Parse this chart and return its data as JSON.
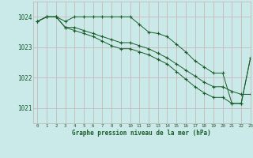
{
  "title": "Graphe pression niveau de la mer (hPa)",
  "background_color": "#caeaea",
  "grid_color": "#c8b8b8",
  "line_color": "#1a5c28",
  "text_color": "#1a5c28",
  "xlim": [
    -0.5,
    23
  ],
  "ylim": [
    1020.5,
    1024.5
  ],
  "yticks": [
    1021,
    1022,
    1023,
    1024
  ],
  "xticks": [
    0,
    1,
    2,
    3,
    4,
    5,
    6,
    7,
    8,
    9,
    10,
    11,
    12,
    13,
    14,
    15,
    16,
    17,
    18,
    19,
    20,
    21,
    22,
    23
  ],
  "line1_x": [
    0,
    1,
    2,
    3,
    4,
    5,
    6,
    7,
    8,
    9,
    10,
    11,
    12,
    13,
    14,
    15,
    16,
    17,
    18,
    19,
    20,
    21,
    22,
    23
  ],
  "line1_y": [
    1023.85,
    1024.0,
    1024.0,
    1023.85,
    1024.0,
    1024.0,
    1024.0,
    1024.0,
    1024.0,
    1024.0,
    1024.0,
    1023.75,
    1023.5,
    1023.45,
    1023.35,
    1023.1,
    1022.85,
    1022.55,
    1022.35,
    1022.15,
    1022.15,
    1021.15,
    1021.15,
    1022.65
  ],
  "line2_x": [
    0,
    1,
    2,
    3,
    4,
    5,
    6,
    7,
    8,
    9,
    10,
    11,
    12,
    13,
    14,
    15,
    16,
    17,
    18,
    19,
    20,
    21,
    22,
    23
  ],
  "line2_y": [
    1023.85,
    1024.0,
    1024.0,
    1023.65,
    1023.65,
    1023.55,
    1023.45,
    1023.35,
    1023.25,
    1023.15,
    1023.15,
    1023.05,
    1022.95,
    1022.8,
    1022.65,
    1022.45,
    1022.25,
    1022.05,
    1021.85,
    1021.7,
    1021.7,
    1021.55,
    1021.45,
    1021.45
  ],
  "line3_x": [
    0,
    1,
    2,
    3,
    4,
    5,
    6,
    7,
    8,
    9,
    10,
    11,
    12,
    13,
    14,
    15,
    16,
    17,
    18,
    19,
    20,
    21,
    22,
    23
  ],
  "line3_y": [
    1023.85,
    1024.0,
    1024.0,
    1023.65,
    1023.55,
    1023.45,
    1023.35,
    1023.2,
    1023.05,
    1022.95,
    1022.95,
    1022.85,
    1022.75,
    1022.6,
    1022.45,
    1022.2,
    1021.95,
    1021.7,
    1021.5,
    1021.35,
    1021.35,
    1021.15,
    1021.15,
    1022.65
  ]
}
